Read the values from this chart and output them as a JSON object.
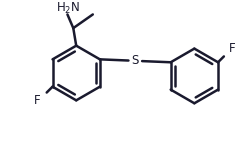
{
  "bg_color": "#ffffff",
  "line_color": "#1a1a2e",
  "line_width": 1.8,
  "text_color": "#1a1a2e",
  "figsize": [
    2.53,
    1.56
  ],
  "dpi": 100,
  "atoms": {
    "NH2_label": "H₂N",
    "S_label": "S",
    "F1_label": "F",
    "F2_label": "F"
  },
  "font_size_atom": 8.5,
  "font_size_subscript": 7
}
